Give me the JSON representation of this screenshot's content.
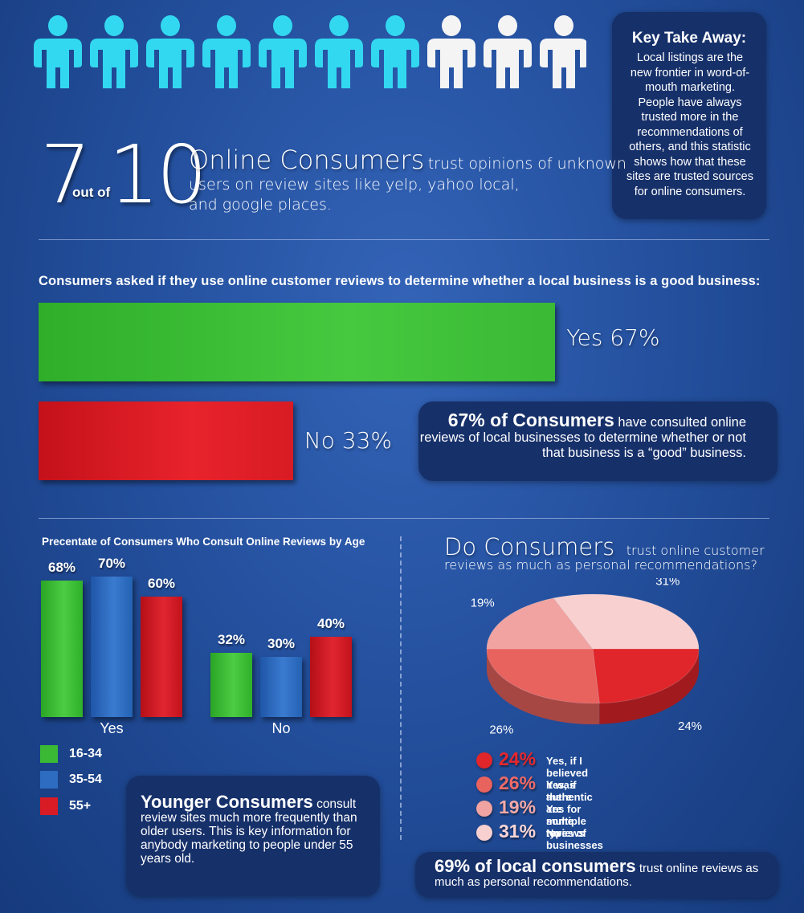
{
  "header": {
    "num_left": "7",
    "out_of": "out of",
    "num_right": "10",
    "lead": "Online Consumers",
    "rest_line1": "trust opinions of unknown",
    "line2": "users on review sites like yelp, yahoo local,",
    "line3": "and google places.",
    "people_total": 10,
    "people_highlighted": 7
  },
  "takeaway": {
    "title": "Key Take Away:",
    "body": "Local listings are the new frontier in word-of-mouth marketing. People have always trusted more in the recommendations of others, and this statistic shows how that these sites are trusted sources for online consumers."
  },
  "question1": "Consumers asked if they use online customer reviews to determine whether a local business is a good business:",
  "callout67": {
    "bold": "67% of Consumers",
    "rest": "have consulted online reviews of local businesses to determine whether or not that business is a “good” business."
  },
  "age_title": "Precentate of Consumers Who Consult Online Reviews by Age",
  "younger": {
    "bold": "Younger Consumers",
    "rest": "consult review sites much more frequently than older users. This is key information for anybody marketing to people under 55 years old."
  },
  "trust_title": {
    "big": "Do Consumers",
    "small1": "trust online customer",
    "small2": "reviews as much as personal recommendations?"
  },
  "callout69": {
    "bold": "69% of local consumers",
    "rest": "trust online reviews as much as personal recommendations."
  },
  "colors": {
    "green": "#3ab935",
    "red": "#d81b24",
    "blue": "#2d6cc0",
    "person_highlight": "#32d8f0",
    "person_default": "#f4f4f4"
  },
  "chart_data": [
    {
      "type": "bar",
      "orientation": "horizontal",
      "categories": [
        "Yes",
        "No"
      ],
      "values": [
        67,
        33
      ],
      "labels": [
        "Yes 67%",
        "No 33%"
      ],
      "colors": [
        "#3ab935",
        "#d81b24"
      ]
    },
    {
      "type": "bar",
      "title": "Precentate of Consumers Who Consult Online Reviews by Age",
      "categories": [
        "Yes",
        "No"
      ],
      "series": [
        {
          "name": "16-34",
          "values": [
            68,
            32
          ],
          "labels": [
            "68%",
            "32%"
          ],
          "color": "#3ab935"
        },
        {
          "name": "35-54",
          "values": [
            70,
            30
          ],
          "labels": [
            "70%",
            "30%"
          ],
          "color": "#2d6cc0"
        },
        {
          "name": "55+",
          "values": [
            60,
            40
          ],
          "labels": [
            "60%",
            "40%"
          ],
          "color": "#d81b24"
        }
      ],
      "legend": "bottom-left"
    },
    {
      "type": "pie",
      "title": "Do Consumers trust online customer reviews as much as personal recommendations?",
      "slices": [
        {
          "label": "Yes, if I believed it was authentic",
          "value": 24,
          "pct": "24%",
          "color": "#e0262a",
          "text_color": "#e8272c"
        },
        {
          "label": "Yes, if there are multiple reviews",
          "value": 26,
          "pct": "26%",
          "color": "#e8625e",
          "text_color": "#ef6a66"
        },
        {
          "label": "Yes for some types of businesses",
          "value": 19,
          "pct": "19%",
          "color": "#f0a3a0",
          "text_color": "#f3a9a6"
        },
        {
          "label": "No",
          "value": 31,
          "pct": "31%",
          "color": "#f8d0d0",
          "text_color": "#f9d6d6"
        }
      ]
    }
  ]
}
